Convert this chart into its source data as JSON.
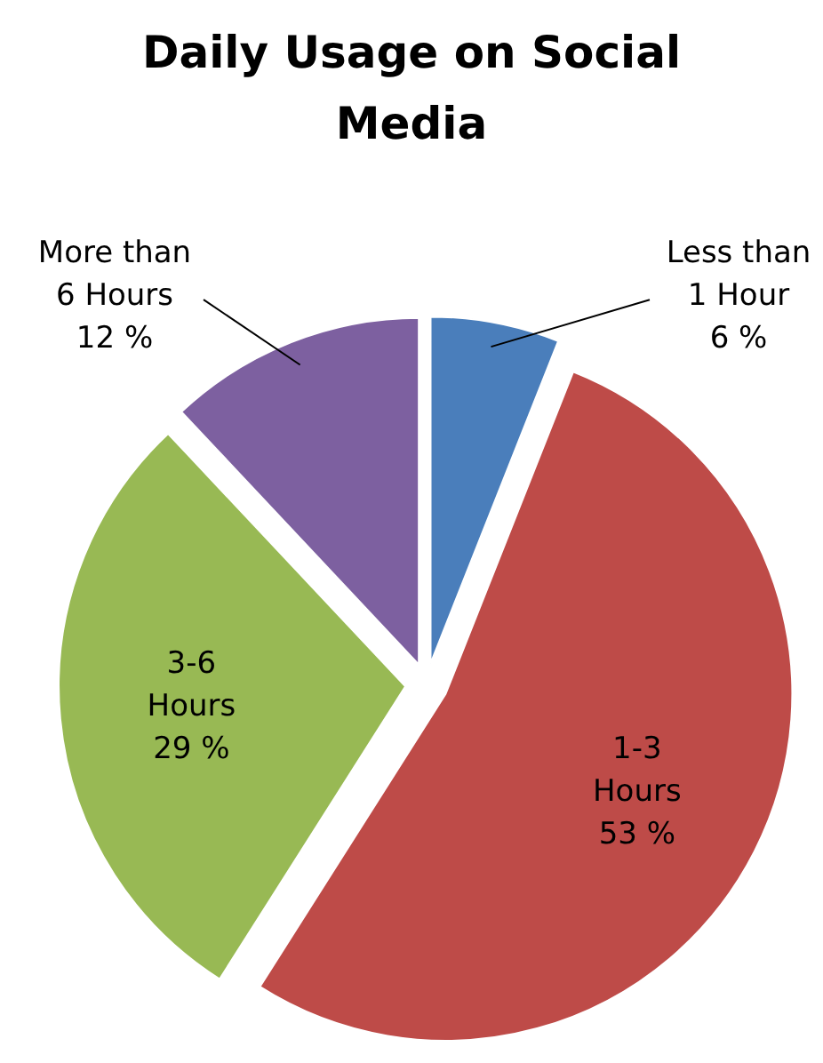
{
  "chart_data": {
    "type": "pie",
    "title": "Daily Usage on Social Media",
    "categories": [
      "Less than 1 Hour",
      "1-3 Hours",
      "3-6 Hours",
      "More than 6 Hours"
    ],
    "values": [
      6,
      53,
      29,
      12
    ],
    "value_labels": [
      "6 %",
      "53 %",
      "29 %",
      "12 %"
    ],
    "colors": [
      "#4a7ebb",
      "#be4b48",
      "#98b954",
      "#7d60a0"
    ]
  }
}
